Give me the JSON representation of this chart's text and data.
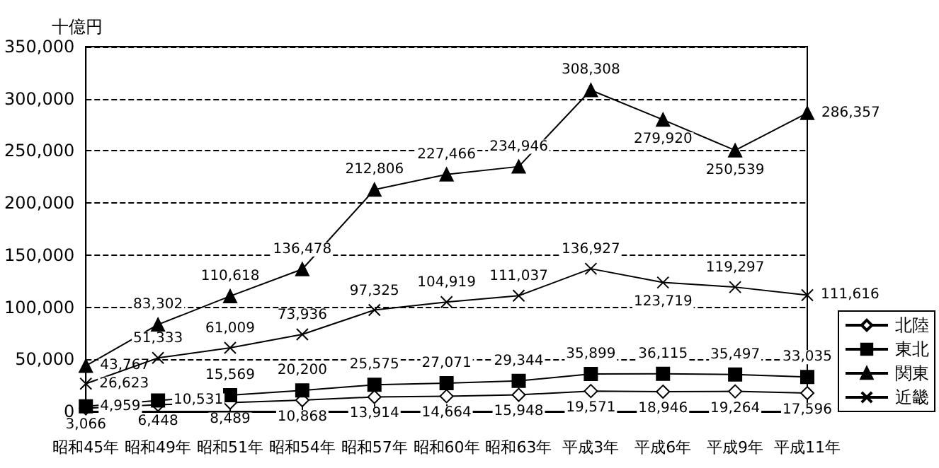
{
  "chart_data": {
    "type": "line",
    "ylabel": "十億円",
    "categories": [
      "昭和45年",
      "昭和49年",
      "昭和51年",
      "昭和54年",
      "昭和57年",
      "昭和60年",
      "昭和63年",
      "平成3年",
      "平成6年",
      "平成9年",
      "平成11年"
    ],
    "series": [
      {
        "name": "北陸",
        "color": "#000000",
        "marker": "diamond",
        "values": [
          3066,
          6448,
          8489,
          10868,
          13914,
          14664,
          15948,
          19571,
          18946,
          19264,
          17596
        ],
        "value_labels": [
          "3,066",
          "6,448",
          "8,489",
          "10,868",
          "13,914",
          "14,664",
          "15,948",
          "19,571",
          "18,946",
          "19,264",
          "17,596"
        ]
      },
      {
        "name": "東北",
        "color": "#000000",
        "marker": "square",
        "values": [
          4959,
          10531,
          15569,
          20200,
          25575,
          27071,
          29344,
          35899,
          36115,
          35497,
          33035
        ],
        "value_labels": [
          "4,959",
          "10,531",
          "15,569",
          "20,200",
          "25,575",
          "27,071",
          "29,344",
          "35,899",
          "36,115",
          "35,497",
          "33,035"
        ]
      },
      {
        "name": "関東",
        "color": "#000000",
        "marker": "triangle",
        "values": [
          43767,
          83302,
          110618,
          136478,
          212806,
          227466,
          234946,
          308308,
          279920,
          250539,
          286357
        ],
        "value_labels": [
          "43,767",
          "83,302",
          "110,618",
          "136,478",
          "212,806",
          "227,466",
          "234,946",
          "308,308",
          "279,920",
          "250,539",
          "286,357"
        ]
      },
      {
        "name": "近畿",
        "color": "#000000",
        "marker": "cross",
        "values": [
          26623,
          51333,
          61009,
          73936,
          97325,
          104919,
          111037,
          136927,
          123719,
          119297,
          111616
        ],
        "value_labels": [
          "26,623",
          "51,333",
          "61,009",
          "73,936",
          "97,325",
          "104,919",
          "111,037",
          "136,927",
          "123,719",
          "119,297",
          "111,616"
        ]
      }
    ],
    "ylim": [
      0,
      350000
    ],
    "yticks": [
      {
        "value": 0,
        "label": "0"
      },
      {
        "value": 50000,
        "label": "50,000"
      },
      {
        "value": 100000,
        "label": "100,000"
      },
      {
        "value": 150000,
        "label": "150,000"
      },
      {
        "value": 200000,
        "label": "200,000"
      },
      {
        "value": 250000,
        "label": "250,000"
      },
      {
        "value": 300000,
        "label": "300,000"
      },
      {
        "value": 350000,
        "label": "350,000"
      }
    ],
    "grid": "y",
    "legend": "right",
    "data_labels": true,
    "line_style": "solid"
  }
}
